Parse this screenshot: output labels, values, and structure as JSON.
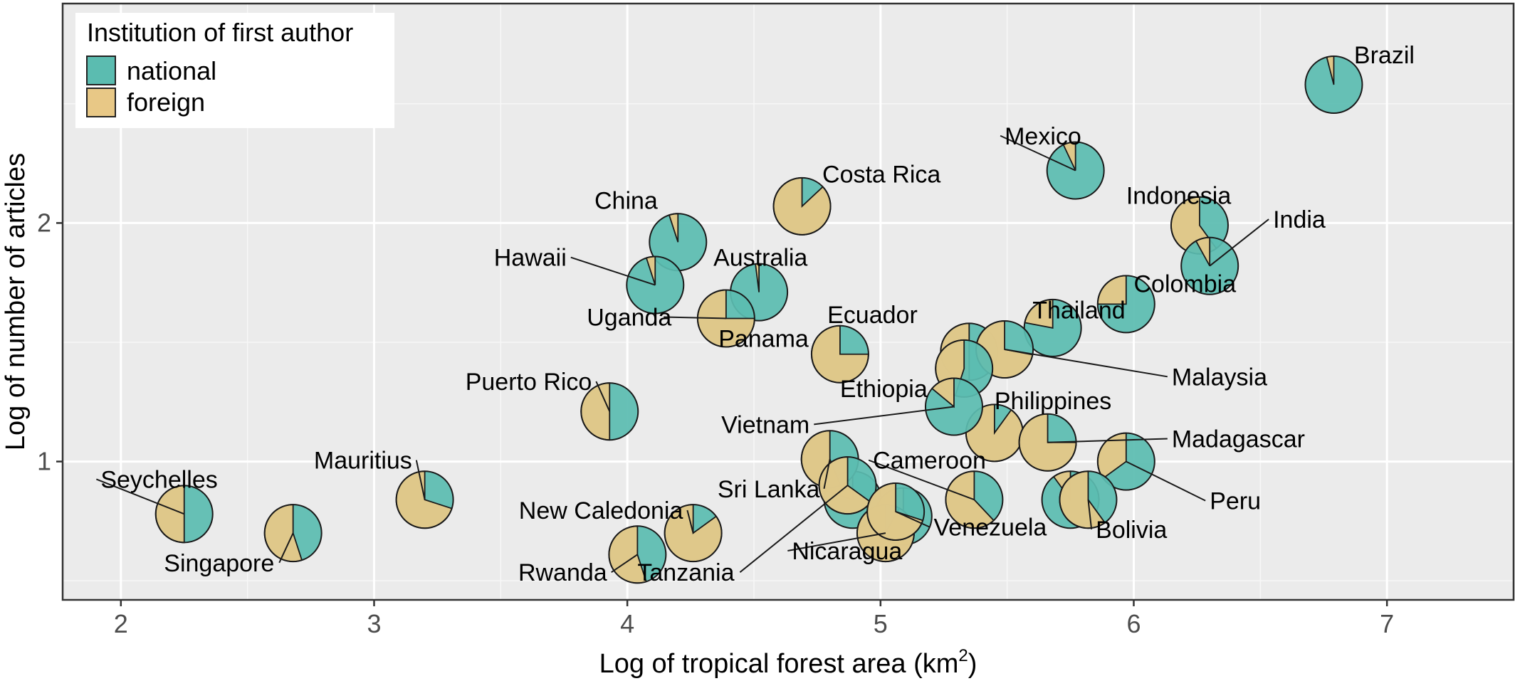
{
  "chart_data": {
    "type": "scatter",
    "xlabel_base": "Log of tropical forest area (km",
    "xlabel_sup": "2",
    "xlabel_end": ")",
    "ylabel": "Log of number of articles",
    "xlim": [
      1.77,
      7.5
    ],
    "ylim": [
      0.42,
      2.92
    ],
    "xticks": [
      2,
      3,
      4,
      5,
      6,
      7
    ],
    "xtick_labels": [
      "2",
      "3",
      "4",
      "5",
      "6",
      "7"
    ],
    "yticks": [
      1,
      2
    ],
    "ytick_labels": [
      "1",
      "2"
    ],
    "grid": true,
    "colors": {
      "national": "#5bbcb0",
      "foreign": "#e8c886",
      "panel": "#ebebeb",
      "grid": "#ffffff"
    },
    "legend": {
      "title": "Institution of first author",
      "position": "top-left",
      "items": [
        {
          "key": "national",
          "label": "national"
        },
        {
          "key": "foreign",
          "label": "foreign"
        }
      ]
    },
    "points": [
      {
        "name": "Brazil",
        "x": 6.79,
        "y": 2.58,
        "foreign": 0.04,
        "lx": 6.87,
        "ly": 2.67,
        "anchor": "start"
      },
      {
        "name": "Mexico",
        "x": 5.77,
        "y": 2.22,
        "foreign": 0.07,
        "lx": 5.49,
        "ly": 2.33,
        "anchor": "start",
        "line": true
      },
      {
        "name": "Indonesia",
        "x": 6.26,
        "y": 1.99,
        "foreign": 0.6,
        "lx": 5.97,
        "ly": 2.08,
        "anchor": "start"
      },
      {
        "name": "India",
        "x": 6.3,
        "y": 1.82,
        "foreign": 0.08,
        "lx": 6.55,
        "ly": 1.98,
        "anchor": "start",
        "line": true
      },
      {
        "name": "Colombia",
        "x": 5.97,
        "y": 1.66,
        "foreign": 0.25,
        "lx": 6.0,
        "ly": 1.71,
        "anchor": "start"
      },
      {
        "name": "Thailand",
        "x": 5.68,
        "y": 1.56,
        "foreign": 0.22,
        "lx": 5.6,
        "ly": 1.6,
        "anchor": "start"
      },
      {
        "name": "Costa Rica",
        "x": 4.69,
        "y": 2.07,
        "foreign": 0.87,
        "lx": 4.77,
        "ly": 2.17,
        "anchor": "start"
      },
      {
        "name": "China",
        "x": 4.2,
        "y": 1.92,
        "foreign": 0.05,
        "lx": 4.12,
        "ly": 2.06,
        "anchor": "end"
      },
      {
        "name": "Hawaii",
        "x": 4.11,
        "y": 1.74,
        "foreign": 0.05,
        "lx": 3.76,
        "ly": 1.82,
        "anchor": "end",
        "line": true
      },
      {
        "name": "Australia",
        "x": 4.52,
        "y": 1.71,
        "foreign": 0.02,
        "lx": 4.34,
        "ly": 1.82,
        "anchor": "start"
      },
      {
        "name": "Uganda",
        "x": 4.39,
        "y": 1.6,
        "foreign": 0.75,
        "lx": 3.84,
        "ly": 1.57,
        "anchor": "start",
        "line": true
      },
      {
        "name": "Panama",
        "x": 4.84,
        "y": 1.45,
        "foreign": 0.75,
        "lx": 4.36,
        "ly": 1.48,
        "anchor": "start"
      },
      {
        "name": "Ecuador",
        "x": 5.35,
        "y": 1.46,
        "foreign": 0.5,
        "lx": 4.79,
        "ly": 1.58,
        "anchor": "start"
      },
      {
        "name": "Malaysia",
        "x": 5.49,
        "y": 1.47,
        "foreign": 0.72,
        "lx": 6.15,
        "ly": 1.32,
        "anchor": "start",
        "line": true
      },
      {
        "name": "Ethiopia",
        "x": 5.33,
        "y": 1.39,
        "foreign": 0.45,
        "lx": 4.84,
        "ly": 1.27,
        "anchor": "start"
      },
      {
        "name": "Puerto Rico",
        "x": 3.93,
        "y": 1.21,
        "foreign": 0.5,
        "lx": 3.86,
        "ly": 1.3,
        "anchor": "end",
        "line": true
      },
      {
        "name": "Philippines",
        "x": 5.45,
        "y": 1.12,
        "foreign": 0.9,
        "lx": 5.45,
        "ly": 1.22,
        "anchor": "start"
      },
      {
        "name": "Vietnam",
        "x": 5.29,
        "y": 1.23,
        "foreign": 0.14,
        "lx": 4.72,
        "ly": 1.12,
        "anchor": "end",
        "line": true
      },
      {
        "name": "Madagascar",
        "x": 5.66,
        "y": 1.08,
        "foreign": 0.75,
        "lx": 6.15,
        "ly": 1.06,
        "anchor": "start",
        "line": true
      },
      {
        "name": "Peru",
        "x": 5.97,
        "y": 1.0,
        "foreign": 0.35,
        "lx": 6.3,
        "ly": 0.8,
        "anchor": "start",
        "line": true
      },
      {
        "name": "Seychelles",
        "x": 2.25,
        "y": 0.78,
        "foreign": 0.5,
        "lx": 1.92,
        "ly": 0.89,
        "anchor": "start",
        "line": true
      },
      {
        "name": "Singapore",
        "x": 2.68,
        "y": 0.7,
        "foreign": 0.55,
        "lx": 2.17,
        "ly": 0.54,
        "anchor": "start",
        "line": true
      },
      {
        "name": "Mauritius",
        "x": 3.2,
        "y": 0.84,
        "foreign": 0.7,
        "lx": 3.15,
        "ly": 0.97,
        "anchor": "end",
        "line": true
      },
      {
        "name": "Cameroon",
        "x": 5.37,
        "y": 0.84,
        "foreign": 0.62,
        "lx": 4.97,
        "ly": 0.97,
        "anchor": "start",
        "line": true
      },
      {
        "name": "Sri Lanka",
        "x": 4.8,
        "y": 1.01,
        "foreign": 0.56,
        "lx": 4.76,
        "ly": 0.85,
        "anchor": "end",
        "line": true
      },
      {
        "name": "New Caledonia",
        "x": 4.26,
        "y": 0.7,
        "foreign": 0.85,
        "lx": 4.22,
        "ly": 0.76,
        "anchor": "end",
        "line": true
      },
      {
        "name": "Rwanda",
        "x": 4.04,
        "y": 0.61,
        "foreign": 0.55,
        "lx": 3.92,
        "ly": 0.5,
        "anchor": "end",
        "line": true
      },
      {
        "name": "Tanzania",
        "x": 4.87,
        "y": 0.9,
        "foreign": 0.65,
        "lx": 4.04,
        "ly": 0.5,
        "anchor": "start",
        "line": true
      },
      {
        "name": "Nicaragua",
        "x": 5.02,
        "y": 0.7,
        "foreign": 0.92,
        "lx": 4.65,
        "ly": 0.59,
        "anchor": "start",
        "line": true
      },
      {
        "name": "Venezuela",
        "x": 5.06,
        "y": 0.79,
        "foreign": 0.7,
        "lx": 5.21,
        "ly": 0.69,
        "anchor": "start",
        "line": true
      },
      {
        "name": "Bolivia",
        "x": 5.82,
        "y": 0.84,
        "foreign": 0.6,
        "lx": 5.85,
        "ly": 0.68,
        "anchor": "start",
        "line": true
      }
    ],
    "extra_markers": [
      {
        "x": 4.89,
        "y": 0.84,
        "foreign": 0.2
      },
      {
        "x": 5.09,
        "y": 0.77,
        "foreign": 0.55
      },
      {
        "x": 5.75,
        "y": 0.84,
        "foreign": 0.1
      }
    ]
  }
}
